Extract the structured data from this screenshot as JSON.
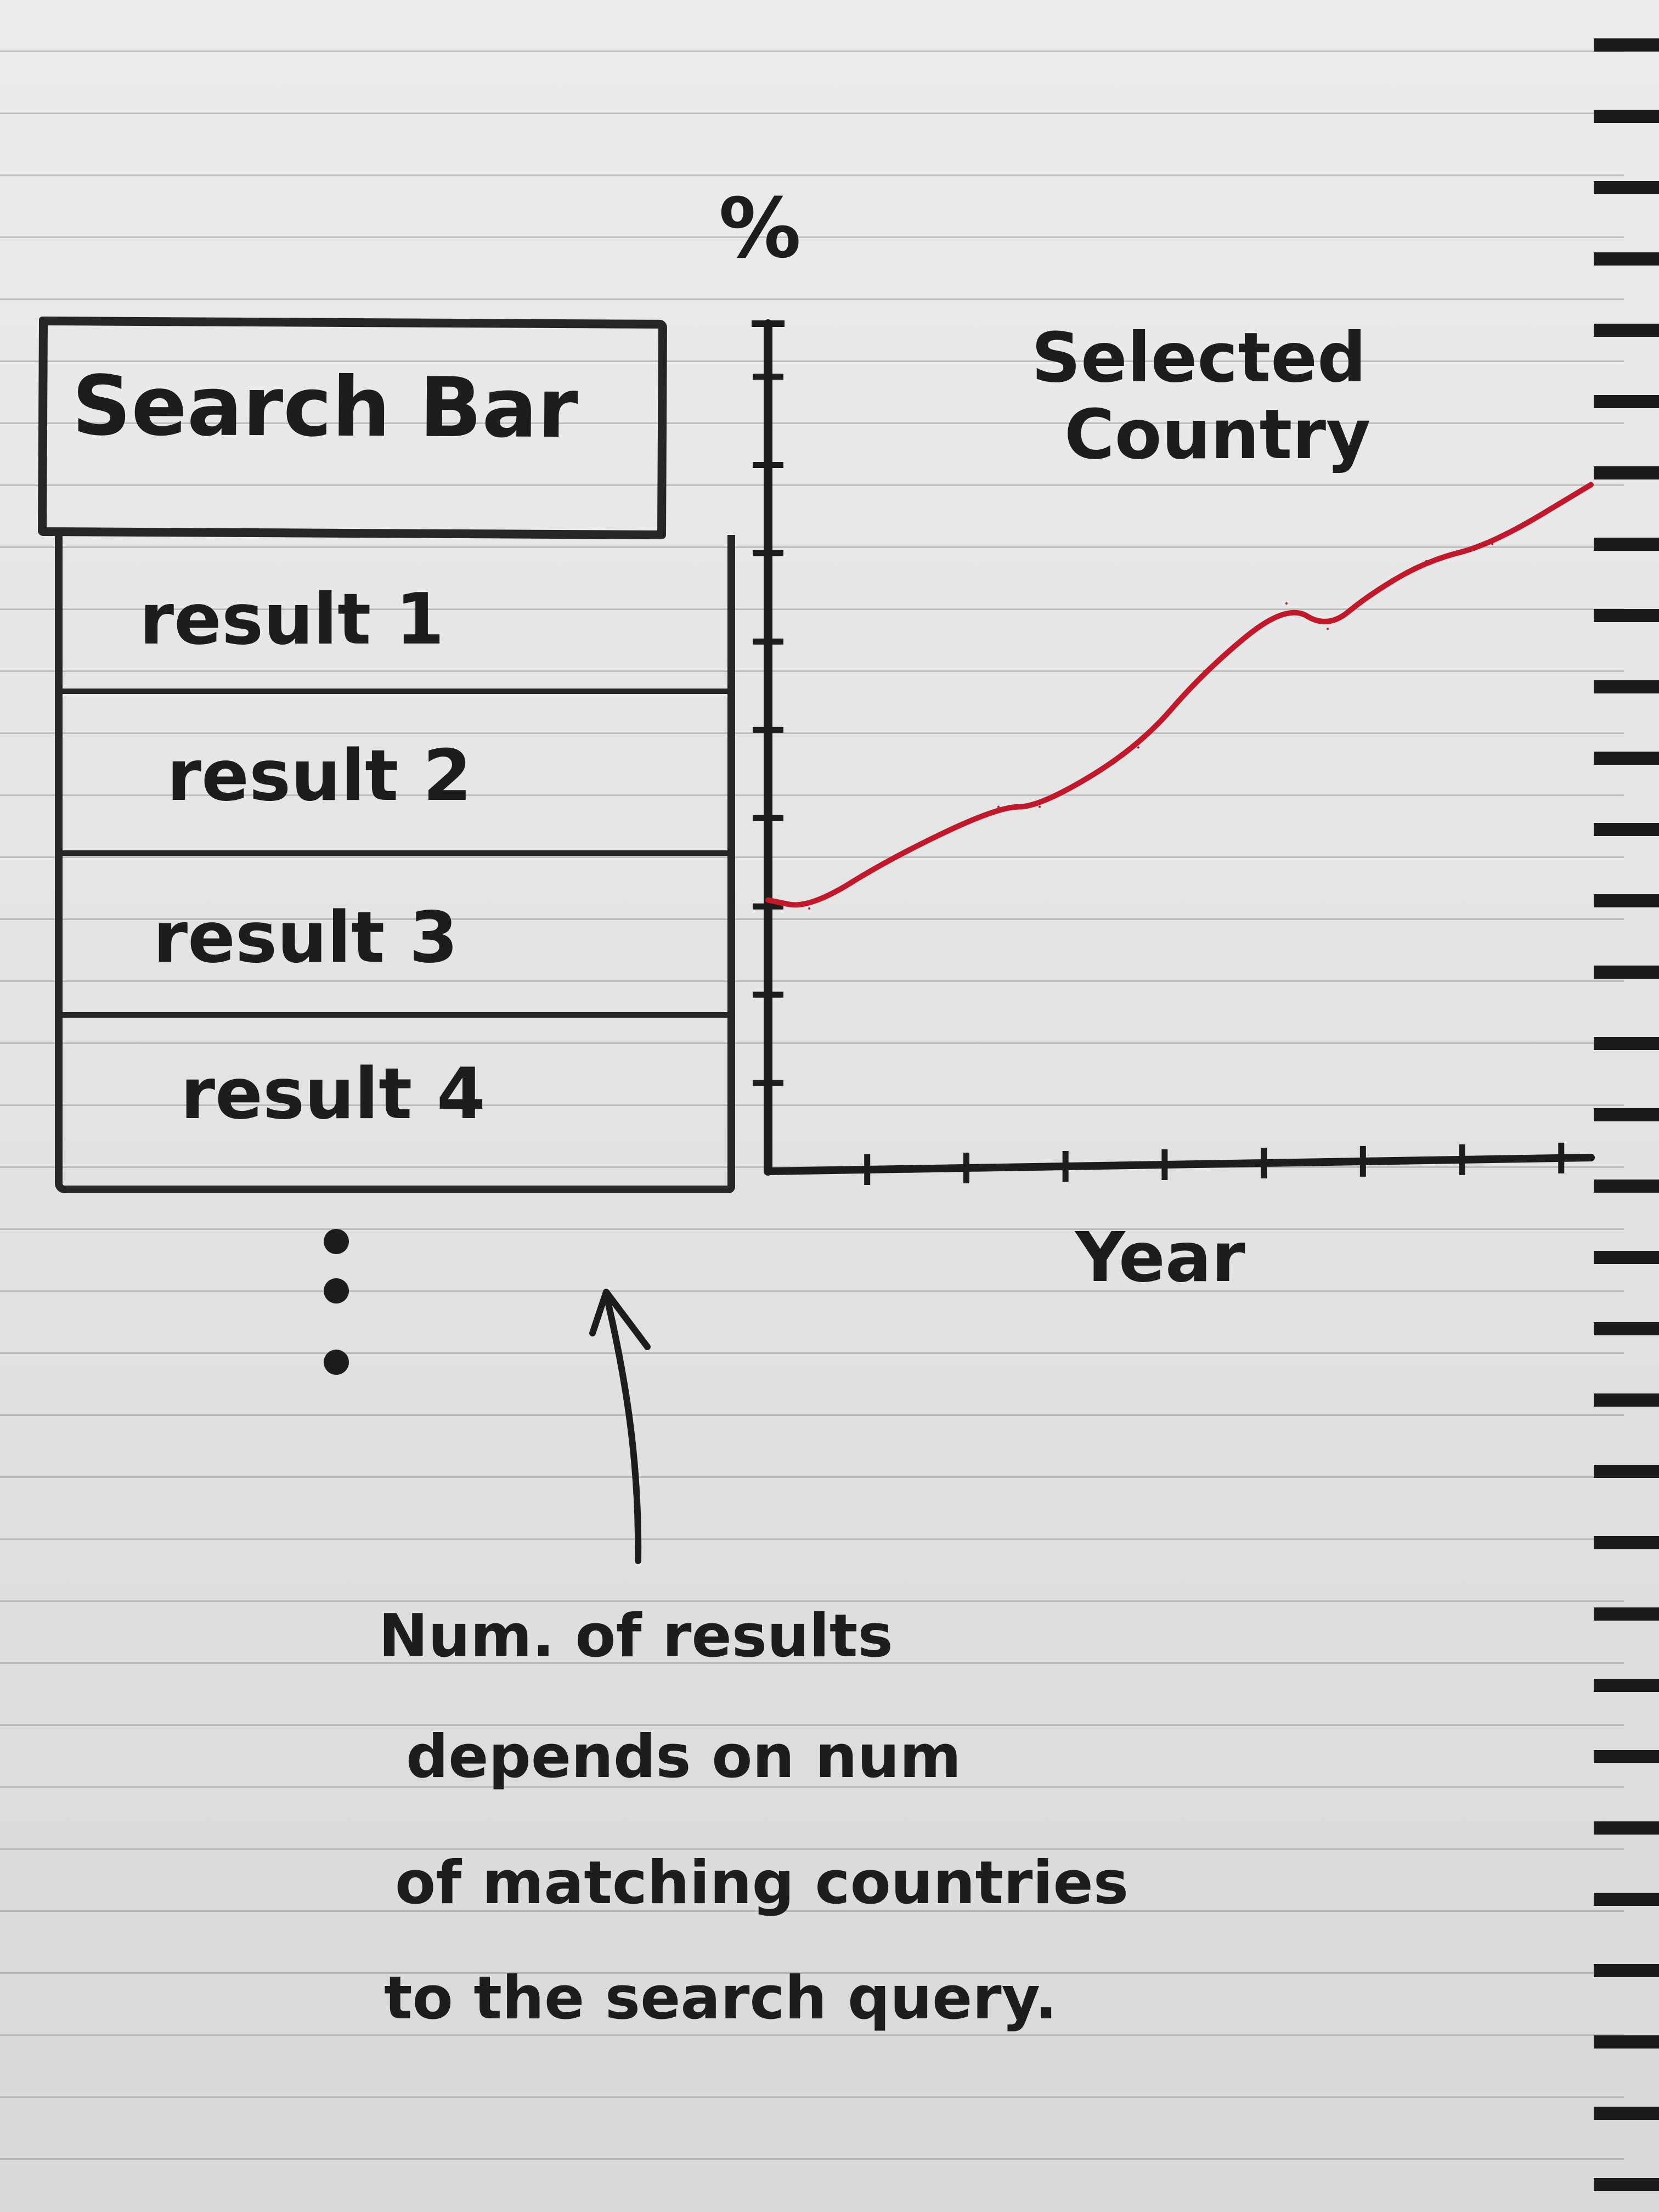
{
  "sidebar": {
    "search_bar_label": "Search Bar",
    "results": [
      "result 1",
      "result 2",
      "result 3",
      "result 4"
    ]
  },
  "chart": {
    "title": "Selected Country",
    "title_lines": [
      "Selected",
      "Country"
    ],
    "ylabel": "%",
    "xlabel": "Year",
    "line_color": "#c0192b"
  },
  "annotation": {
    "lines": [
      "Num. of results",
      "depends on num",
      "of matching countries",
      "to the search query."
    ]
  },
  "chart_data": {
    "type": "line",
    "title": "Selected Country",
    "xlabel": "Year",
    "ylabel": "%",
    "series": [
      {
        "name": "Selected Country",
        "points": [
          {
            "x": 0.0,
            "y": 0.32
          },
          {
            "x": 0.05,
            "y": 0.31
          },
          {
            "x": 0.15,
            "y": 0.37
          },
          {
            "x": 0.28,
            "y": 0.43
          },
          {
            "x": 0.33,
            "y": 0.43
          },
          {
            "x": 0.45,
            "y": 0.5
          },
          {
            "x": 0.53,
            "y": 0.59
          },
          {
            "x": 0.63,
            "y": 0.67
          },
          {
            "x": 0.68,
            "y": 0.64
          },
          {
            "x": 0.73,
            "y": 0.68
          },
          {
            "x": 0.8,
            "y": 0.72
          },
          {
            "x": 0.88,
            "y": 0.74
          },
          {
            "x": 1.0,
            "y": 0.81
          }
        ]
      }
    ],
    "xlim": [
      0,
      1
    ],
    "ylim": [
      0,
      1
    ],
    "y_ticks": 9,
    "x_ticks": 8,
    "grid": false
  }
}
